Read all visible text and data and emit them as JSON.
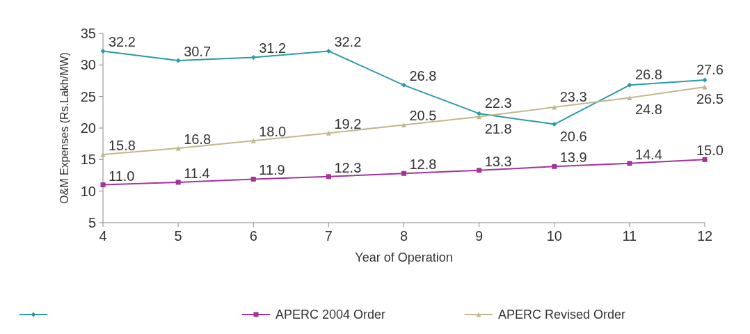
{
  "chart_data": {
    "type": "line",
    "xlabel": "Year of Operation",
    "ylabel": "O&M Expenses (Rs.Lakh/MW)",
    "x": [
      4,
      5,
      6,
      7,
      8,
      9,
      10,
      11,
      12
    ],
    "xlim": [
      4,
      12
    ],
    "xticks": [
      4,
      5,
      6,
      7,
      8,
      9,
      10,
      11,
      12
    ],
    "ylim": [
      5,
      35
    ],
    "yticks": [
      5,
      10,
      15,
      20,
      25,
      30,
      35
    ],
    "grid": false,
    "legend": "bottom",
    "series": [
      {
        "color": "#2b9aa6",
        "marker": "diamond",
        "values": [
          32.2,
          30.7,
          31.2,
          32.2,
          26.8,
          22.3,
          20.6,
          26.8,
          27.6
        ],
        "value_labels": [
          "32.2",
          "30.7",
          "31.2",
          "32.2",
          "26.8",
          "22.3",
          "20.6",
          "26.8",
          "27.6"
        ]
      },
      {
        "name": "APERC 2004 Order",
        "color": "#a3339c",
        "marker": "square",
        "values": [
          11.0,
          11.4,
          11.9,
          12.3,
          12.8,
          13.3,
          13.9,
          14.4,
          15.0
        ],
        "value_labels": [
          "11.0",
          "11.4",
          "11.9",
          "12.3",
          "12.8",
          "13.3",
          "13.9",
          "14.4",
          "15.0"
        ]
      },
      {
        "name": "APERC Revised Order",
        "color": "#c2b68c",
        "marker": "triangle",
        "values": [
          15.8,
          16.8,
          18.0,
          19.2,
          20.5,
          21.8,
          23.3,
          24.8,
          26.5
        ],
        "value_labels": [
          "15.8",
          "16.8",
          "18.0",
          "19.2",
          "20.5",
          "21.8",
          "23.3",
          "24.8",
          "26.5"
        ]
      }
    ]
  }
}
